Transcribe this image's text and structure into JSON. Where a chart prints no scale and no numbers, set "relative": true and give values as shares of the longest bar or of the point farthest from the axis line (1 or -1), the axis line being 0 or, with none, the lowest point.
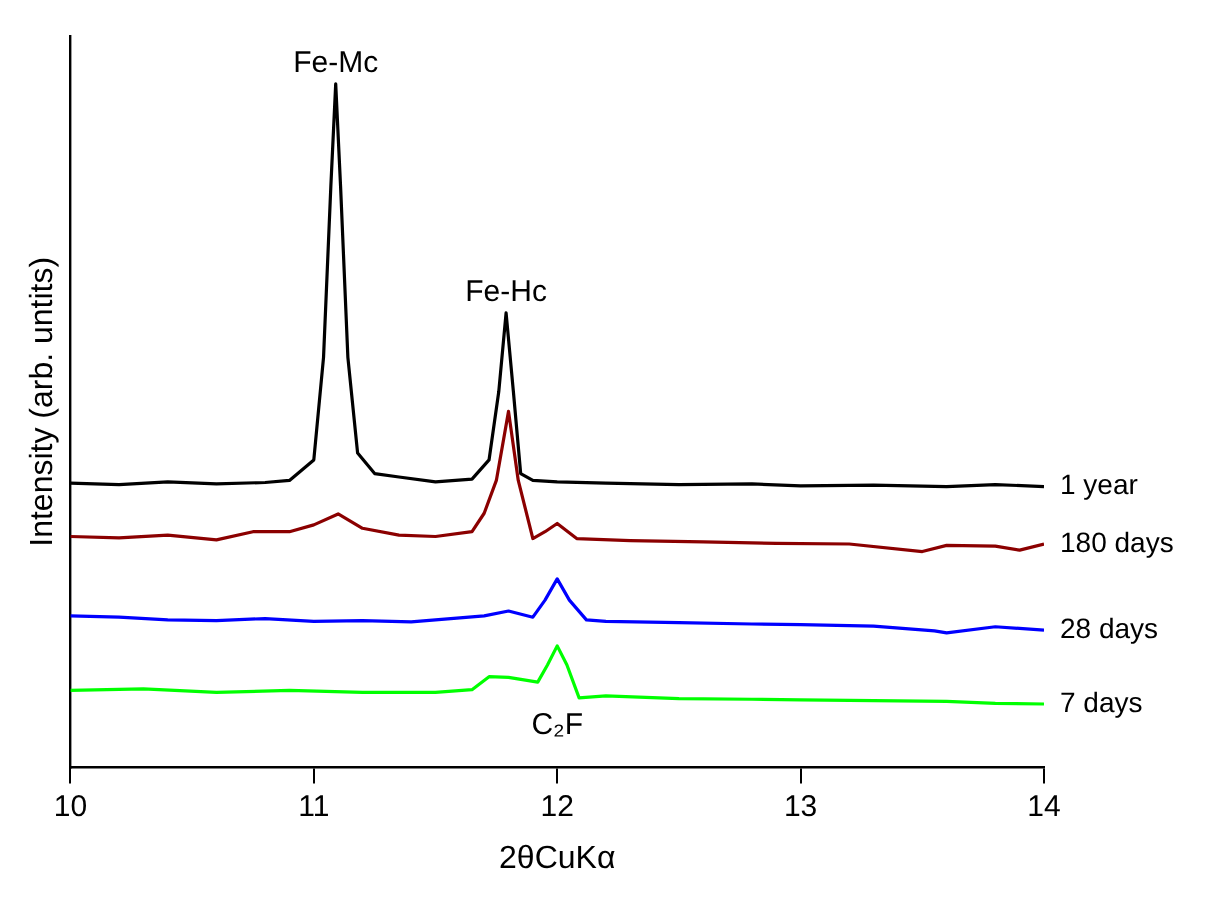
{
  "chart_data": {
    "type": "line",
    "relative": true,
    "xlabel": "2θCuKα",
    "ylabel": "Intensity (arb. untits)",
    "xlim": [
      10,
      14
    ],
    "xticks": [
      10,
      11,
      12,
      13,
      14
    ],
    "grid": false,
    "legend": false,
    "series": [
      {
        "name": "1 year",
        "color": "#000000",
        "x": [
          10,
          10.2,
          10.4,
          10.6,
          10.8,
          10.9,
          11.0,
          11.04,
          11.07,
          11.09,
          11.11,
          11.14,
          11.18,
          11.25,
          11.35,
          11.5,
          11.65,
          11.72,
          11.76,
          11.79,
          11.82,
          11.85,
          11.9,
          12.0,
          12.2,
          12.5,
          12.8,
          13.0,
          13.3,
          13.6,
          13.8,
          14.0
        ],
        "values": [
          0.416,
          0.414,
          0.418,
          0.415,
          0.417,
          0.42,
          0.45,
          0.6,
          0.85,
          1.0,
          0.85,
          0.6,
          0.46,
          0.43,
          0.425,
          0.418,
          0.422,
          0.45,
          0.55,
          0.665,
          0.55,
          0.43,
          0.42,
          0.418,
          0.416,
          0.414,
          0.415,
          0.412,
          0.413,
          0.411,
          0.414,
          0.411
        ]
      },
      {
        "name": "180 days",
        "color": "#8b0000",
        "x": [
          10,
          10.2,
          10.4,
          10.6,
          10.75,
          10.9,
          11.0,
          11.1,
          11.2,
          11.35,
          11.5,
          11.65,
          11.7,
          11.75,
          11.8,
          11.84,
          11.9,
          11.95,
          12.0,
          12.08,
          12.3,
          12.6,
          12.9,
          13.2,
          13.5,
          13.6,
          13.8,
          13.9,
          14.0
        ],
        "values": [
          0.338,
          0.336,
          0.34,
          0.333,
          0.345,
          0.345,
          0.355,
          0.371,
          0.35,
          0.34,
          0.338,
          0.345,
          0.372,
          0.42,
          0.521,
          0.42,
          0.335,
          0.345,
          0.357,
          0.335,
          0.332,
          0.33,
          0.328,
          0.327,
          0.316,
          0.325,
          0.324,
          0.318,
          0.327
        ]
      },
      {
        "name": "28 days",
        "color": "#0000ff",
        "x": [
          10,
          10.2,
          10.4,
          10.6,
          10.8,
          11.0,
          11.2,
          11.4,
          11.6,
          11.7,
          11.8,
          11.9,
          11.95,
          12.0,
          12.05,
          12.12,
          12.2,
          12.5,
          12.8,
          13.0,
          13.3,
          13.55,
          13.6,
          13.8,
          14.0
        ],
        "values": [
          0.222,
          0.22,
          0.216,
          0.215,
          0.218,
          0.214,
          0.215,
          0.213,
          0.219,
          0.222,
          0.229,
          0.22,
          0.245,
          0.276,
          0.245,
          0.216,
          0.214,
          0.212,
          0.21,
          0.209,
          0.207,
          0.2,
          0.197,
          0.206,
          0.201
        ]
      },
      {
        "name": "7 days",
        "color": "#00ff00",
        "x": [
          10,
          10.3,
          10.6,
          10.9,
          11.2,
          11.5,
          11.65,
          11.72,
          11.8,
          11.92,
          11.96,
          12.0,
          12.04,
          12.09,
          12.2,
          12.5,
          12.8,
          13.0,
          13.3,
          13.6,
          13.8,
          14.0
        ],
        "values": [
          0.113,
          0.115,
          0.11,
          0.113,
          0.11,
          0.11,
          0.114,
          0.133,
          0.132,
          0.125,
          0.15,
          0.178,
          0.15,
          0.102,
          0.105,
          0.101,
          0.1,
          0.099,
          0.098,
          0.097,
          0.094,
          0.093
        ]
      }
    ],
    "annotations": [
      {
        "text": "Fe-Mc",
        "x": 11.09,
        "y": 1.0
      },
      {
        "text": "Fe-Hc",
        "x": 11.79,
        "y": 0.665
      },
      {
        "text": "C₂F",
        "x": 12.0,
        "y": 0.178
      }
    ]
  }
}
